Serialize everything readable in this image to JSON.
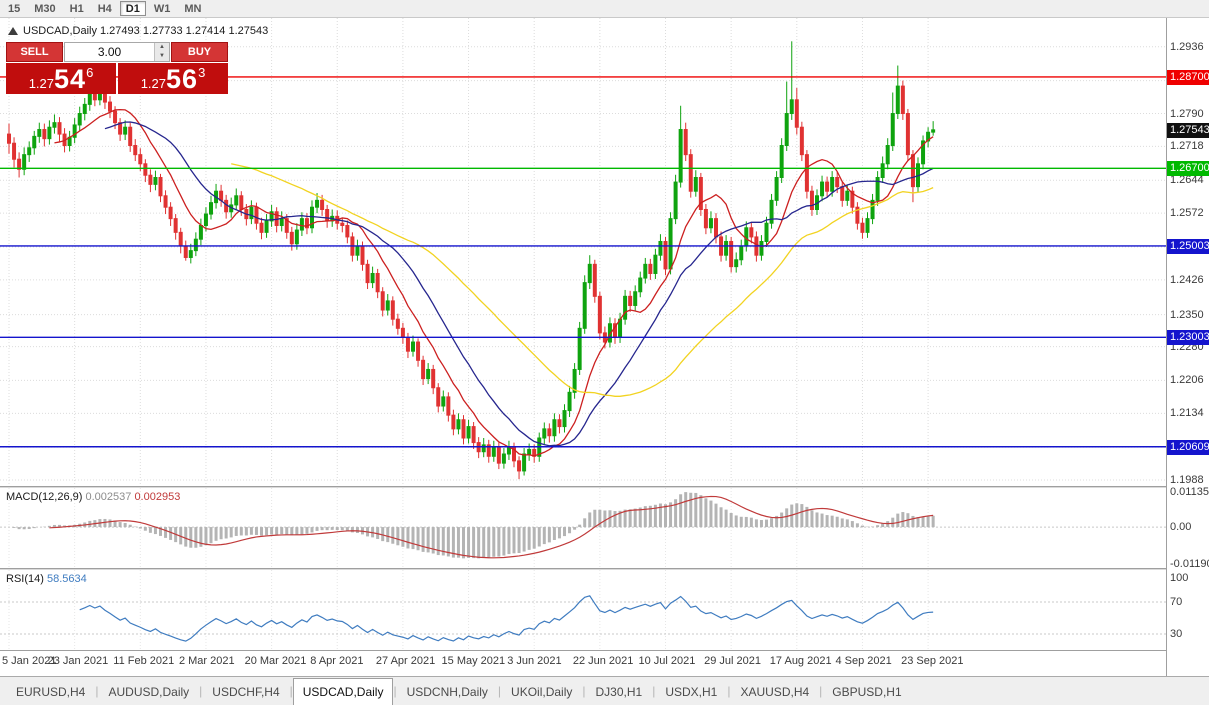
{
  "toolbar": {
    "timeframes": [
      "15",
      "M30",
      "H1",
      "H4",
      "D1",
      "W1",
      "MN"
    ],
    "selected": "D1"
  },
  "chart": {
    "title": "USDCAD,Daily 1.27493 1.27733 1.27414 1.27543",
    "colors": {
      "up": "#0fa30f",
      "down": "#e03232",
      "grid": "#dcdcdc"
    },
    "price_axis": {
      "max": 1.2999,
      "min": 1.1975,
      "ticks": [
        {
          "v": 1.2936,
          "label": "1.2936"
        },
        {
          "v": 1.2862,
          "label": ""
        },
        {
          "v": 1.279,
          "label": "1.2790"
        },
        {
          "v": 1.2718,
          "label": "1.2718"
        },
        {
          "v": 1.2644,
          "label": "1.2644"
        },
        {
          "v": 1.2572,
          "label": "1.2572"
        },
        {
          "v": 1.2498,
          "label": ""
        },
        {
          "v": 1.2426,
          "label": "1.2426"
        },
        {
          "v": 1.235,
          "label": "1.2350"
        },
        {
          "v": 1.228,
          "label": "1.2280"
        },
        {
          "v": 1.2206,
          "label": "1.2206"
        },
        {
          "v": 1.2134,
          "label": "1.2134"
        },
        {
          "v": 1.206,
          "label": ""
        },
        {
          "v": 1.1988,
          "label": "1.1988"
        }
      ]
    },
    "levels": [
      {
        "value": 1.287,
        "label": "1.28700",
        "color": "#ef0000"
      },
      {
        "value": 1.267,
        "label": "1.26700",
        "color": "#00b900"
      },
      {
        "value": 1.25003,
        "label": "1.25003",
        "color": "#1414cd"
      },
      {
        "value": 1.23003,
        "label": "1.23003",
        "color": "#1414cd"
      },
      {
        "value": 1.20609,
        "label": "1.20609",
        "color": "#1414cd"
      }
    ],
    "current_price": {
      "value": 1.27543,
      "label": "1.27543",
      "bg": "#101010"
    },
    "x_ticks": [
      {
        "index": 0,
        "label": "5 Jan 2021"
      },
      {
        "index": 13,
        "label": "23 Jan 2021"
      },
      {
        "index": 26,
        "label": "11 Feb 2021"
      },
      {
        "index": 39,
        "label": "2 Mar 2021"
      },
      {
        "index": 52,
        "label": "20 Mar 2021"
      },
      {
        "index": 65,
        "label": "8 Apr 2021"
      },
      {
        "index": 78,
        "label": "27 Apr 2021"
      },
      {
        "index": 91,
        "label": "15 May 2021"
      },
      {
        "index": 104,
        "label": "3 Jun 2021"
      },
      {
        "index": 117,
        "label": "22 Jun 2021"
      },
      {
        "index": 130,
        "label": "10 Jul 2021"
      },
      {
        "index": 143,
        "label": "29 Jul 2021"
      },
      {
        "index": 156,
        "label": "17 Aug 2021"
      },
      {
        "index": 169,
        "label": "4 Sep 2021"
      },
      {
        "index": 182,
        "label": "23 Sep 2021"
      }
    ]
  },
  "trade_widget": {
    "sell_label": "SELL",
    "buy_label": "BUY",
    "volume": "3.00",
    "sell_price": {
      "prefix": "1.27",
      "big": "54",
      "sup": "6"
    },
    "buy_price": {
      "prefix": "1.27",
      "big": "56",
      "sup": "3"
    }
  },
  "chart_data": {
    "type": "candlestick",
    "symbol": "USDCAD",
    "period": "Daily",
    "ohlc_fields": [
      "open",
      "high",
      "low",
      "close"
    ],
    "candles": [
      [
        1.2745,
        1.2768,
        1.2702,
        1.2725
      ],
      [
        1.2725,
        1.2738,
        1.2672,
        1.269
      ],
      [
        1.269,
        1.2705,
        1.265,
        1.2668
      ],
      [
        1.2668,
        1.2716,
        1.2655,
        1.27
      ],
      [
        1.27,
        1.2729,
        1.2684,
        1.2715
      ],
      [
        1.2715,
        1.2752,
        1.27,
        1.274
      ],
      [
        1.274,
        1.277,
        1.2726,
        1.2755
      ],
      [
        1.2755,
        1.2768,
        1.2718,
        1.2735
      ],
      [
        1.2735,
        1.2775,
        1.2722,
        1.276
      ],
      [
        1.276,
        1.2788,
        1.2746,
        1.277
      ],
      [
        1.277,
        1.2782,
        1.2728,
        1.2745
      ],
      [
        1.2745,
        1.2758,
        1.2705,
        1.272
      ],
      [
        1.272,
        1.2752,
        1.2707,
        1.2738
      ],
      [
        1.2738,
        1.278,
        1.2725,
        1.2765
      ],
      [
        1.2765,
        1.2805,
        1.2752,
        1.279
      ],
      [
        1.279,
        1.2824,
        1.2775,
        1.281
      ],
      [
        1.281,
        1.2848,
        1.2796,
        1.2835
      ],
      [
        1.2835,
        1.2852,
        1.2806,
        1.282
      ],
      [
        1.282,
        1.2855,
        1.2808,
        1.284
      ],
      [
        1.284,
        1.285,
        1.28,
        1.2815
      ],
      [
        1.2815,
        1.2828,
        1.278,
        1.2795
      ],
      [
        1.2795,
        1.2806,
        1.2756,
        1.277
      ],
      [
        1.277,
        1.278,
        1.273,
        1.2745
      ],
      [
        1.2745,
        1.2775,
        1.2732,
        1.276
      ],
      [
        1.276,
        1.277,
        1.2706,
        1.272
      ],
      [
        1.272,
        1.2734,
        1.2686,
        1.27
      ],
      [
        1.27,
        1.2714,
        1.2664,
        1.268
      ],
      [
        1.268,
        1.269,
        1.264,
        1.2655
      ],
      [
        1.2655,
        1.2668,
        1.2618,
        1.2635
      ],
      [
        1.2635,
        1.2665,
        1.2622,
        1.265
      ],
      [
        1.265,
        1.2658,
        1.2596,
        1.261
      ],
      [
        1.261,
        1.2622,
        1.257,
        1.2585
      ],
      [
        1.2585,
        1.2596,
        1.2544,
        1.256
      ],
      [
        1.256,
        1.257,
        1.2514,
        1.253
      ],
      [
        1.253,
        1.254,
        1.2484,
        1.25
      ],
      [
        1.25,
        1.2512,
        1.2468,
        1.2475
      ],
      [
        1.2475,
        1.2505,
        1.2462,
        1.249
      ],
      [
        1.249,
        1.253,
        1.2478,
        1.2515
      ],
      [
        1.2515,
        1.256,
        1.2502,
        1.2545
      ],
      [
        1.2545,
        1.2585,
        1.2532,
        1.257
      ],
      [
        1.257,
        1.261,
        1.2558,
        1.2595
      ],
      [
        1.2595,
        1.2636,
        1.2582,
        1.262
      ],
      [
        1.262,
        1.2634,
        1.2586,
        1.26
      ],
      [
        1.26,
        1.2612,
        1.256,
        1.2575
      ],
      [
        1.2575,
        1.2606,
        1.2562,
        1.259
      ],
      [
        1.259,
        1.2626,
        1.2578,
        1.261
      ],
      [
        1.261,
        1.262,
        1.2566,
        1.258
      ],
      [
        1.258,
        1.2592,
        1.2545,
        1.256
      ],
      [
        1.256,
        1.26,
        1.2548,
        1.2585
      ],
      [
        1.2585,
        1.2595,
        1.2536,
        1.255
      ],
      [
        1.255,
        1.2562,
        1.2515,
        1.253
      ],
      [
        1.253,
        1.257,
        1.2518,
        1.2555
      ],
      [
        1.2555,
        1.259,
        1.2542,
        1.2575
      ],
      [
        1.2575,
        1.2585,
        1.253,
        1.2545
      ],
      [
        1.2545,
        1.2576,
        1.2532,
        1.256
      ],
      [
        1.256,
        1.257,
        1.2516,
        1.253
      ],
      [
        1.253,
        1.2542,
        1.249,
        1.2505
      ],
      [
        1.2505,
        1.255,
        1.2492,
        1.2535
      ],
      [
        1.2535,
        1.2574,
        1.2522,
        1.256
      ],
      [
        1.256,
        1.2572,
        1.2526,
        1.254
      ],
      [
        1.254,
        1.26,
        1.2528,
        1.2585
      ],
      [
        1.2585,
        1.2616,
        1.2572,
        1.26
      ],
      [
        1.26,
        1.2612,
        1.2566,
        1.258
      ],
      [
        1.258,
        1.259,
        1.254,
        1.2555
      ],
      [
        1.2555,
        1.258,
        1.2542,
        1.2565
      ],
      [
        1.2565,
        1.2578,
        1.2536,
        1.255
      ],
      [
        1.255,
        1.2562,
        1.253,
        1.2545
      ],
      [
        1.2545,
        1.2556,
        1.2506,
        1.252
      ],
      [
        1.252,
        1.253,
        1.2466,
        1.248
      ],
      [
        1.248,
        1.2514,
        1.2468,
        1.25
      ],
      [
        1.25,
        1.251,
        1.2446,
        1.246
      ],
      [
        1.246,
        1.247,
        1.2406,
        1.242
      ],
      [
        1.242,
        1.2455,
        1.2408,
        1.244
      ],
      [
        1.244,
        1.245,
        1.2386,
        1.24
      ],
      [
        1.24,
        1.241,
        1.2346,
        1.236
      ],
      [
        1.236,
        1.2395,
        1.2348,
        1.238
      ],
      [
        1.238,
        1.239,
        1.2326,
        1.234
      ],
      [
        1.234,
        1.2352,
        1.2306,
        1.232
      ],
      [
        1.232,
        1.2332,
        1.2286,
        1.23
      ],
      [
        1.23,
        1.231,
        1.2255,
        1.227
      ],
      [
        1.227,
        1.2304,
        1.2258,
        1.229
      ],
      [
        1.229,
        1.2298,
        1.2236,
        1.225
      ],
      [
        1.225,
        1.226,
        1.2196,
        1.221
      ],
      [
        1.221,
        1.2244,
        1.2198,
        1.223
      ],
      [
        1.223,
        1.224,
        1.2176,
        1.219
      ],
      [
        1.219,
        1.22,
        1.2136,
        1.215
      ],
      [
        1.215,
        1.2184,
        1.2138,
        1.217
      ],
      [
        1.217,
        1.218,
        1.2116,
        1.213
      ],
      [
        1.213,
        1.2142,
        1.2086,
        1.21
      ],
      [
        1.21,
        1.2134,
        1.2088,
        1.212
      ],
      [
        1.212,
        1.213,
        1.2066,
        1.208
      ],
      [
        1.208,
        1.212,
        1.2068,
        1.2105
      ],
      [
        1.2105,
        1.2115,
        1.2056,
        1.207
      ],
      [
        1.207,
        1.2082,
        1.2036,
        1.205
      ],
      [
        1.205,
        1.208,
        1.2038,
        1.2065
      ],
      [
        1.2065,
        1.2076,
        1.2026,
        1.204
      ],
      [
        1.204,
        1.2074,
        1.2028,
        1.206
      ],
      [
        1.206,
        1.207,
        1.2012,
        1.2025
      ],
      [
        1.2025,
        1.2058,
        1.2013,
        1.2045
      ],
      [
        1.2045,
        1.2074,
        1.2032,
        1.206
      ],
      [
        1.206,
        1.207,
        1.2016,
        1.203
      ],
      [
        1.203,
        1.204,
        1.199,
        1.2008
      ],
      [
        1.2008,
        1.2058,
        1.1998,
        1.2045
      ],
      [
        1.2045,
        1.2068,
        1.203,
        1.2055
      ],
      [
        1.2055,
        1.2066,
        1.2026,
        1.204
      ],
      [
        1.204,
        1.2092,
        1.2028,
        1.208
      ],
      [
        1.208,
        1.2114,
        1.2066,
        1.21
      ],
      [
        1.21,
        1.2112,
        1.207,
        1.2085
      ],
      [
        1.2085,
        1.2134,
        1.2072,
        1.212
      ],
      [
        1.212,
        1.2132,
        1.209,
        1.2105
      ],
      [
        1.2105,
        1.2154,
        1.2092,
        1.214
      ],
      [
        1.214,
        1.2194,
        1.2126,
        1.218
      ],
      [
        1.218,
        1.2244,
        1.2166,
        1.223
      ],
      [
        1.223,
        1.2334,
        1.2218,
        1.232
      ],
      [
        1.232,
        1.2436,
        1.2308,
        1.242
      ],
      [
        1.242,
        1.248,
        1.2406,
        1.246
      ],
      [
        1.246,
        1.247,
        1.2376,
        1.239
      ],
      [
        1.239,
        1.24,
        1.2296,
        1.231
      ],
      [
        1.231,
        1.2324,
        1.2276,
        1.229
      ],
      [
        1.229,
        1.2344,
        1.2278,
        1.233
      ],
      [
        1.233,
        1.2342,
        1.2286,
        1.23
      ],
      [
        1.23,
        1.2354,
        1.2288,
        1.234
      ],
      [
        1.234,
        1.2404,
        1.2328,
        1.239
      ],
      [
        1.239,
        1.2402,
        1.2356,
        1.237
      ],
      [
        1.237,
        1.2414,
        1.2358,
        1.24
      ],
      [
        1.24,
        1.2444,
        1.2388,
        1.243
      ],
      [
        1.243,
        1.2474,
        1.2418,
        1.246
      ],
      [
        1.246,
        1.2472,
        1.2426,
        1.244
      ],
      [
        1.244,
        1.2494,
        1.2428,
        1.248
      ],
      [
        1.248,
        1.2526,
        1.2468,
        1.251
      ],
      [
        1.251,
        1.252,
        1.2436,
        1.245
      ],
      [
        1.245,
        1.2574,
        1.2438,
        1.256
      ],
      [
        1.256,
        1.2656,
        1.2548,
        1.264
      ],
      [
        1.264,
        1.2807,
        1.2628,
        1.2755
      ],
      [
        1.2755,
        1.277,
        1.2686,
        1.27
      ],
      [
        1.27,
        1.2712,
        1.2606,
        1.262
      ],
      [
        1.262,
        1.2666,
        1.2608,
        1.265
      ],
      [
        1.265,
        1.266,
        1.2566,
        1.258
      ],
      [
        1.258,
        1.2592,
        1.2526,
        1.254
      ],
      [
        1.254,
        1.2576,
        1.2528,
        1.256
      ],
      [
        1.256,
        1.2572,
        1.2506,
        1.252
      ],
      [
        1.252,
        1.2532,
        1.2466,
        1.248
      ],
      [
        1.248,
        1.2524,
        1.2468,
        1.251
      ],
      [
        1.251,
        1.252,
        1.2442,
        1.2455
      ],
      [
        1.2455,
        1.2486,
        1.2442,
        1.247
      ],
      [
        1.247,
        1.2514,
        1.2458,
        1.25
      ],
      [
        1.25,
        1.2554,
        1.2488,
        1.254
      ],
      [
        1.254,
        1.2552,
        1.2506,
        1.252
      ],
      [
        1.252,
        1.2532,
        1.2466,
        1.248
      ],
      [
        1.248,
        1.2524,
        1.2468,
        1.251
      ],
      [
        1.251,
        1.2564,
        1.2498,
        1.255
      ],
      [
        1.255,
        1.2614,
        1.2538,
        1.26
      ],
      [
        1.26,
        1.2664,
        1.2588,
        1.265
      ],
      [
        1.265,
        1.2736,
        1.2638,
        1.272
      ],
      [
        1.272,
        1.286,
        1.2708,
        1.279
      ],
      [
        1.279,
        1.2948,
        1.2776,
        1.282
      ],
      [
        1.282,
        1.2846,
        1.2744,
        1.276
      ],
      [
        1.276,
        1.2772,
        1.2686,
        1.27
      ],
      [
        1.27,
        1.271,
        1.2604,
        1.262
      ],
      [
        1.262,
        1.2632,
        1.2566,
        1.258
      ],
      [
        1.258,
        1.2624,
        1.2568,
        1.261
      ],
      [
        1.261,
        1.2654,
        1.2598,
        1.264
      ],
      [
        1.264,
        1.2652,
        1.2606,
        1.262
      ],
      [
        1.262,
        1.2664,
        1.2608,
        1.265
      ],
      [
        1.265,
        1.2662,
        1.2616,
        1.263
      ],
      [
        1.263,
        1.2642,
        1.2586,
        1.26
      ],
      [
        1.26,
        1.2634,
        1.2588,
        1.262
      ],
      [
        1.262,
        1.263,
        1.2571,
        1.2585
      ],
      [
        1.2585,
        1.2596,
        1.2536,
        1.255
      ],
      [
        1.255,
        1.2562,
        1.2516,
        1.253
      ],
      [
        1.253,
        1.2574,
        1.2518,
        1.256
      ],
      [
        1.256,
        1.2614,
        1.2548,
        1.26
      ],
      [
        1.26,
        1.2664,
        1.2588,
        1.265
      ],
      [
        1.265,
        1.2696,
        1.2638,
        1.268
      ],
      [
        1.268,
        1.2736,
        1.2668,
        1.272
      ],
      [
        1.272,
        1.2836,
        1.2708,
        1.279
      ],
      [
        1.279,
        1.2895,
        1.2778,
        1.285
      ],
      [
        1.285,
        1.2862,
        1.2776,
        1.279
      ],
      [
        1.279,
        1.28,
        1.2686,
        1.27
      ],
      [
        1.27,
        1.271,
        1.2596,
        1.263
      ],
      [
        1.263,
        1.2694,
        1.2618,
        1.268
      ],
      [
        1.268,
        1.2742,
        1.2668,
        1.273
      ],
      [
        1.273,
        1.276,
        1.2716,
        1.2749
      ],
      [
        1.27493,
        1.27733,
        1.27414,
        1.27543
      ]
    ],
    "moving_averages": [
      {
        "period": 10,
        "color": "#cc2020",
        "name": "ma-fast"
      },
      {
        "period": 20,
        "color": "#26268e",
        "name": "ma-mid"
      },
      {
        "period": 45,
        "color": "#f2d321",
        "name": "ma-slow"
      }
    ],
    "indicators": [
      {
        "name": "MACD",
        "display": "MACD(12,26,9)",
        "value_main": "0.002537",
        "value_signal": "0.002953",
        "range": [
          -0.0133,
          0.0127
        ],
        "axis_ticks": [
          {
            "v": 0.01135,
            "label": "0.01135"
          },
          {
            "v": 0,
            "label": "0.00"
          },
          {
            "v": -0.0119,
            "label": "-0.01190"
          }
        ],
        "histogram_color": "#b4b4b4",
        "signal_color": "#c03a3a"
      },
      {
        "name": "RSI",
        "display": "RSI(14)",
        "value": "58.5634",
        "range": [
          10,
          110
        ],
        "axis_ticks": [
          {
            "v": 100,
            "label": "100"
          },
          {
            "v": 70,
            "label": "70"
          },
          {
            "v": 30,
            "label": "30"
          }
        ],
        "levels": [
          70,
          30
        ],
        "line_color": "#3f7cc0"
      }
    ]
  },
  "bottom_tabs": {
    "selected": "USDCAD,Daily",
    "tabs": [
      "EURUSD,H4",
      "AUDUSD,Daily",
      "USDCHF,H4",
      "USDCAD,Daily",
      "USDCNH,Daily",
      "UKOil,Daily",
      "DJ30,H1",
      "USDX,H1",
      "XAUUSD,H4",
      "GBPUSD,H1"
    ]
  }
}
